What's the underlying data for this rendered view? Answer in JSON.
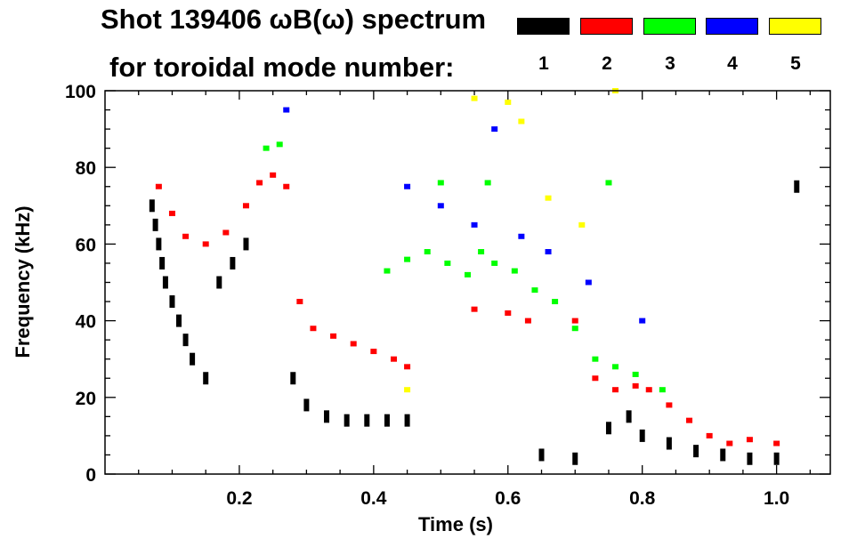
{
  "chart_data": {
    "type": "scatter",
    "title": "Shot 139406 ωB(ω) spectrum",
    "subtitle": "for toroidal mode number:",
    "xlabel": "Time (s)",
    "ylabel": "Frequency (kHz)",
    "xlim": [
      0.0,
      1.08
    ],
    "ylim": [
      0,
      100
    ],
    "xticks": [
      0.2,
      0.4,
      0.6,
      0.8,
      1.0
    ],
    "xtick_labels": [
      "0.2",
      "0.4",
      "0.6",
      "0.8",
      "1.0"
    ],
    "yticks": [
      0,
      20,
      40,
      60,
      80,
      100
    ],
    "ytick_labels": [
      "0",
      "20",
      "40",
      "60",
      "80",
      "100"
    ],
    "legend": [
      {
        "label": "1",
        "color": "#000000"
      },
      {
        "label": "2",
        "color": "#ff0000"
      },
      {
        "label": "3",
        "color": "#00ff00"
      },
      {
        "label": "4",
        "color": "#0000ff"
      },
      {
        "label": "5",
        "color": "#ffff00"
      }
    ],
    "series": [
      {
        "name": "n=1",
        "color": "#000000",
        "points": [
          [
            0.07,
            70
          ],
          [
            0.075,
            65
          ],
          [
            0.08,
            60
          ],
          [
            0.085,
            55
          ],
          [
            0.09,
            50
          ],
          [
            0.1,
            45
          ],
          [
            0.11,
            40
          ],
          [
            0.12,
            35
          ],
          [
            0.13,
            30
          ],
          [
            0.15,
            25
          ],
          [
            0.17,
            50
          ],
          [
            0.19,
            55
          ],
          [
            0.21,
            60
          ],
          [
            0.28,
            25
          ],
          [
            0.3,
            18
          ],
          [
            0.33,
            15
          ],
          [
            0.36,
            14
          ],
          [
            0.39,
            14
          ],
          [
            0.42,
            14
          ],
          [
            0.45,
            14
          ],
          [
            0.65,
            5
          ],
          [
            0.7,
            4
          ],
          [
            0.75,
            12
          ],
          [
            0.78,
            15
          ],
          [
            0.8,
            10
          ],
          [
            0.84,
            8
          ],
          [
            0.88,
            6
          ],
          [
            0.92,
            5
          ],
          [
            0.96,
            4
          ],
          [
            1.0,
            4
          ],
          [
            1.03,
            75
          ]
        ]
      },
      {
        "name": "n=2",
        "color": "#ff0000",
        "points": [
          [
            0.08,
            75
          ],
          [
            0.1,
            68
          ],
          [
            0.12,
            62
          ],
          [
            0.15,
            60
          ],
          [
            0.18,
            63
          ],
          [
            0.21,
            70
          ],
          [
            0.23,
            76
          ],
          [
            0.25,
            78
          ],
          [
            0.27,
            75
          ],
          [
            0.29,
            45
          ],
          [
            0.31,
            38
          ],
          [
            0.34,
            36
          ],
          [
            0.37,
            34
          ],
          [
            0.4,
            32
          ],
          [
            0.43,
            30
          ],
          [
            0.45,
            28
          ],
          [
            0.55,
            43
          ],
          [
            0.6,
            42
          ],
          [
            0.63,
            40
          ],
          [
            0.7,
            40
          ],
          [
            0.73,
            25
          ],
          [
            0.76,
            22
          ],
          [
            0.79,
            23
          ],
          [
            0.81,
            22
          ],
          [
            0.84,
            18
          ],
          [
            0.87,
            14
          ],
          [
            0.9,
            10
          ],
          [
            0.93,
            8
          ],
          [
            0.96,
            9
          ],
          [
            1.0,
            8
          ]
        ]
      },
      {
        "name": "n=3",
        "color": "#00ff00",
        "points": [
          [
            0.24,
            85
          ],
          [
            0.26,
            86
          ],
          [
            0.42,
            53
          ],
          [
            0.45,
            56
          ],
          [
            0.48,
            58
          ],
          [
            0.51,
            55
          ],
          [
            0.54,
            52
          ],
          [
            0.56,
            58
          ],
          [
            0.58,
            55
          ],
          [
            0.61,
            53
          ],
          [
            0.64,
            48
          ],
          [
            0.67,
            45
          ],
          [
            0.7,
            38
          ],
          [
            0.73,
            30
          ],
          [
            0.76,
            28
          ],
          [
            0.79,
            26
          ],
          [
            0.83,
            22
          ],
          [
            0.5,
            76
          ],
          [
            0.57,
            76
          ],
          [
            0.75,
            76
          ]
        ]
      },
      {
        "name": "n=4",
        "color": "#0000ff",
        "points": [
          [
            0.27,
            95
          ],
          [
            0.45,
            75
          ],
          [
            0.5,
            70
          ],
          [
            0.55,
            65
          ],
          [
            0.58,
            90
          ],
          [
            0.62,
            62
          ],
          [
            0.66,
            58
          ],
          [
            0.72,
            50
          ],
          [
            0.8,
            40
          ]
        ]
      },
      {
        "name": "n=5",
        "color": "#ffff00",
        "points": [
          [
            0.55,
            98
          ],
          [
            0.6,
            97
          ],
          [
            0.62,
            92
          ],
          [
            0.66,
            72
          ],
          [
            0.71,
            65
          ],
          [
            0.45,
            22
          ],
          [
            0.76,
            100
          ]
        ]
      }
    ]
  }
}
